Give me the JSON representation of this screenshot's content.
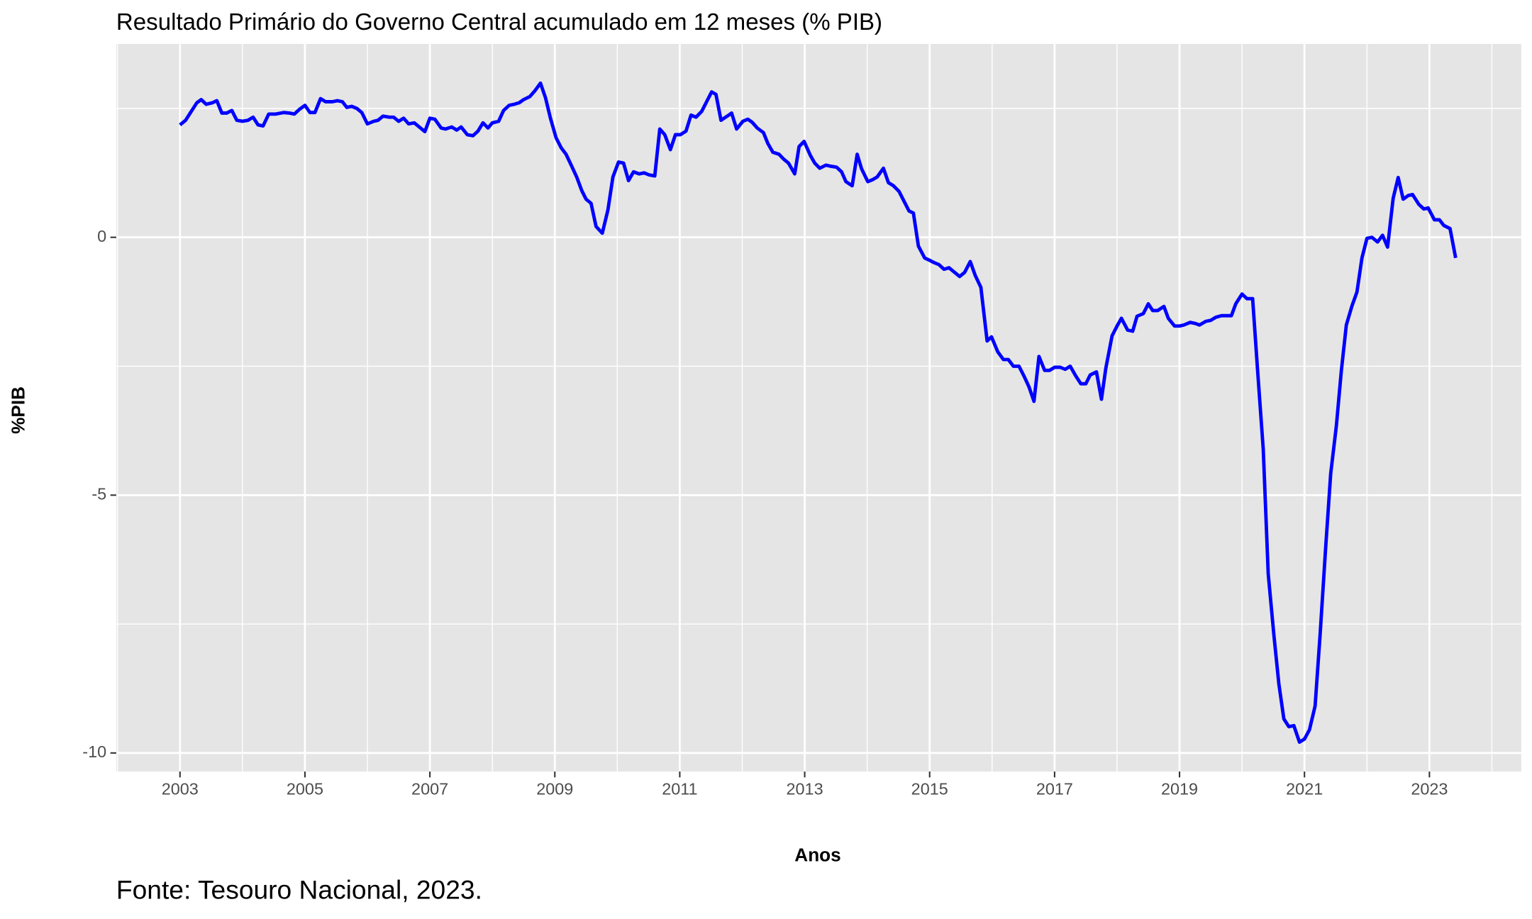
{
  "chart_data": {
    "type": "line",
    "title": "Resultado Primário do Governo Central acumulado em 12 meses (% PIB)",
    "xlabel": "Anos",
    "ylabel": "%PIB",
    "caption": "Fonte: Tesouro Nacional, 2023.",
    "color": "#0000ff",
    "grid": true,
    "xlim": [
      2001.98,
      2024.47
    ],
    "ylim": [
      -10.36,
      3.75
    ],
    "xticks": [
      2003,
      2005,
      2007,
      2009,
      2011,
      2013,
      2015,
      2017,
      2019,
      2021,
      2023
    ],
    "yticks": [
      -10,
      -5,
      0
    ],
    "x": [
      2003.0,
      2003.09,
      2003.19,
      2003.27,
      2003.34,
      2003.42,
      2003.52,
      2003.59,
      2003.67,
      2003.75,
      2003.83,
      2003.91,
      2004.0,
      2004.09,
      2004.17,
      2004.25,
      2004.33,
      2004.42,
      2004.53,
      2004.66,
      2004.75,
      2004.83,
      2004.91,
      2005.0,
      2005.08,
      2005.16,
      2005.25,
      2005.33,
      2005.44,
      2005.52,
      2005.6,
      2005.67,
      2005.75,
      2005.83,
      2005.91,
      2006.0,
      2006.1,
      2006.17,
      2006.25,
      2006.35,
      2006.42,
      2006.5,
      2006.58,
      2006.66,
      2006.75,
      2006.83,
      2006.92,
      2007.0,
      2007.08,
      2007.18,
      2007.25,
      2007.35,
      2007.43,
      2007.5,
      2007.6,
      2007.69,
      2007.77,
      2007.85,
      2007.93,
      2008.0,
      2008.1,
      2008.18,
      2008.27,
      2008.35,
      2008.43,
      2008.5,
      2008.6,
      2008.68,
      2008.77,
      2008.85,
      2008.93,
      2009.02,
      2009.1,
      2009.18,
      2009.27,
      2009.35,
      2009.43,
      2009.5,
      2009.58,
      2009.66,
      2009.76,
      2009.85,
      2009.93,
      2010.02,
      2010.1,
      2010.18,
      2010.26,
      2010.35,
      2010.43,
      2010.51,
      2010.6,
      2010.68,
      2010.76,
      2010.85,
      2010.93,
      2011.01,
      2011.1,
      2011.18,
      2011.26,
      2011.35,
      2011.43,
      2011.51,
      2011.58,
      2011.66,
      2011.76,
      2011.83,
      2011.91,
      2012.01,
      2012.09,
      2012.16,
      2012.24,
      2012.34,
      2012.41,
      2012.49,
      2012.59,
      2012.66,
      2012.74,
      2012.84,
      2012.91,
      2012.99,
      2013.09,
      2013.16,
      2013.24,
      2013.34,
      2013.41,
      2013.51,
      2013.59,
      2013.66,
      2013.76,
      2013.84,
      2013.91,
      2014.01,
      2014.09,
      2014.16,
      2014.26,
      2014.34,
      2014.42,
      2014.51,
      2014.59,
      2014.67,
      2014.74,
      2014.82,
      2014.92,
      2014.99,
      2015.07,
      2015.15,
      2015.23,
      2015.31,
      2015.4,
      2015.48,
      2015.56,
      2015.65,
      2015.73,
      2015.82,
      2015.92,
      2015.99,
      2016.09,
      2016.18,
      2016.26,
      2016.34,
      2016.43,
      2016.51,
      2016.59,
      2016.67,
      2016.75,
      2016.84,
      2016.92,
      2017.0,
      2017.09,
      2017.17,
      2017.25,
      2017.34,
      2017.42,
      2017.5,
      2017.57,
      2017.67,
      2017.75,
      2017.82,
      2017.92,
      2018.0,
      2018.07,
      2018.17,
      2018.25,
      2018.32,
      2018.42,
      2018.5,
      2018.57,
      2018.65,
      2018.75,
      2018.82,
      2018.92,
      2019.0,
      2019.07,
      2019.17,
      2019.25,
      2019.32,
      2019.42,
      2019.5,
      2019.58,
      2019.67,
      2019.75,
      2019.83,
      2019.9,
      2020.0,
      2020.08,
      2020.17,
      2020.25,
      2020.34,
      2020.42,
      2020.51,
      2020.59,
      2020.67,
      2020.75,
      2020.83,
      2020.92,
      2021.0,
      2021.08,
      2021.17,
      2021.25,
      2021.34,
      2021.42,
      2021.51,
      2021.59,
      2021.67,
      2021.76,
      2021.84,
      2021.92,
      2022.0,
      2022.08,
      2022.17,
      2022.25,
      2022.33,
      2022.42,
      2022.5,
      2022.58,
      2022.66,
      2022.73,
      2022.83,
      2022.91,
      2022.98,
      2023.08,
      2023.16,
      2023.23,
      2023.33,
      2023.42
    ],
    "values": [
      2.18,
      2.27,
      2.46,
      2.61,
      2.67,
      2.58,
      2.61,
      2.65,
      2.41,
      2.41,
      2.46,
      2.27,
      2.25,
      2.27,
      2.33,
      2.18,
      2.16,
      2.39,
      2.39,
      2.42,
      2.41,
      2.39,
      2.48,
      2.56,
      2.42,
      2.42,
      2.69,
      2.63,
      2.63,
      2.65,
      2.63,
      2.52,
      2.54,
      2.5,
      2.42,
      2.2,
      2.25,
      2.27,
      2.35,
      2.33,
      2.33,
      2.25,
      2.31,
      2.2,
      2.22,
      2.14,
      2.05,
      2.31,
      2.29,
      2.12,
      2.1,
      2.14,
      2.08,
      2.14,
      1.99,
      1.97,
      2.06,
      2.22,
      2.12,
      2.22,
      2.25,
      2.46,
      2.56,
      2.58,
      2.61,
      2.67,
      2.73,
      2.84,
      2.99,
      2.71,
      2.31,
      1.93,
      1.74,
      1.61,
      1.38,
      1.17,
      0.91,
      0.74,
      0.66,
      0.21,
      0.08,
      0.53,
      1.17,
      1.46,
      1.44,
      1.1,
      1.27,
      1.23,
      1.25,
      1.21,
      1.19,
      2.1,
      1.99,
      1.7,
      1.99,
      1.99,
      2.06,
      2.37,
      2.33,
      2.44,
      2.63,
      2.82,
      2.77,
      2.27,
      2.35,
      2.41,
      2.1,
      2.25,
      2.29,
      2.23,
      2.12,
      2.03,
      1.82,
      1.65,
      1.61,
      1.52,
      1.44,
      1.23,
      1.76,
      1.86,
      1.59,
      1.44,
      1.34,
      1.4,
      1.38,
      1.36,
      1.27,
      1.08,
      1.0,
      1.61,
      1.33,
      1.08,
      1.12,
      1.17,
      1.34,
      1.06,
      1.0,
      0.89,
      0.7,
      0.51,
      0.47,
      -0.17,
      -0.4,
      -0.44,
      -0.49,
      -0.53,
      -0.62,
      -0.59,
      -0.68,
      -0.76,
      -0.68,
      -0.47,
      -0.74,
      -0.97,
      -2.01,
      -1.93,
      -2.22,
      -2.37,
      -2.37,
      -2.5,
      -2.5,
      -2.69,
      -2.9,
      -3.18,
      -2.31,
      -2.58,
      -2.58,
      -2.52,
      -2.52,
      -2.56,
      -2.5,
      -2.69,
      -2.84,
      -2.84,
      -2.67,
      -2.61,
      -3.14,
      -2.54,
      -1.91,
      -1.72,
      -1.57,
      -1.8,
      -1.82,
      -1.53,
      -1.48,
      -1.29,
      -1.42,
      -1.42,
      -1.34,
      -1.57,
      -1.72,
      -1.72,
      -1.7,
      -1.65,
      -1.67,
      -1.7,
      -1.63,
      -1.61,
      -1.55,
      -1.52,
      -1.52,
      -1.52,
      -1.29,
      -1.1,
      -1.19,
      -1.19,
      -2.59,
      -4.11,
      -6.53,
      -7.71,
      -8.66,
      -9.34,
      -9.49,
      -9.47,
      -9.79,
      -9.73,
      -9.55,
      -9.09,
      -7.71,
      -6.0,
      -4.58,
      -3.66,
      -2.59,
      -1.7,
      -1.33,
      -1.06,
      -0.4,
      -0.02,
      0,
      -0.09,
      0.04,
      -0.19,
      0.76,
      1.16,
      0.74,
      0.81,
      0.83,
      0.64,
      0.55,
      0.57,
      0.34,
      0.34,
      0.23,
      0.17,
      -0.4
    ]
  }
}
